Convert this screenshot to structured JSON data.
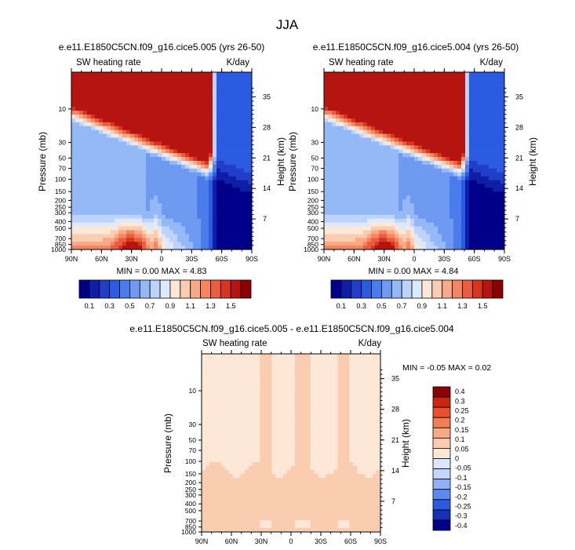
{
  "page_title": "JJA",
  "colors": {
    "diverging": [
      "#00008b",
      "#0d1fa7",
      "#1f3fcb",
      "#2b5be0",
      "#4a7ceb",
      "#6e9af2",
      "#95b8f7",
      "#bcd4fb",
      "#ddeafd",
      "#fde8d8",
      "#fbcdb0",
      "#f8a985",
      "#f48560",
      "#ea5d3e",
      "#d7351f",
      "#b61410",
      "#8b0000"
    ],
    "diff": [
      "#00008b",
      "#1531b7",
      "#2b5be0",
      "#5c8aef",
      "#8fb2f6",
      "#c1d8fb",
      "#dbe8fb",
      "#fde8d8",
      "#fbcdb0",
      "#f8a985",
      "#f47d56",
      "#ea4f2e",
      "#c9250f",
      "#8b0000"
    ]
  },
  "chart_data": [
    {
      "type": "heatmap",
      "title": "e.e11.E1850C5CN.f09_g16.cice5.005 (yrs 26-50)",
      "variable": "SW heating rate",
      "units": "K/day",
      "xlabel": "",
      "ylabel": "Pressure (mb)",
      "ylabel_right": "Height (km)",
      "x_ticks": [
        "90N",
        "60N",
        "30N",
        "0",
        "30S",
        "60S",
        "90S"
      ],
      "x_values": [
        90,
        60,
        30,
        0,
        -30,
        -60,
        -90
      ],
      "y_ticks": [
        "10",
        "30",
        "50",
        "70",
        "100",
        "150",
        "200",
        "250",
        "300",
        "400",
        "500",
        "700",
        "850",
        "1000"
      ],
      "y_values": [
        10,
        30,
        50,
        70,
        100,
        150,
        200,
        250,
        300,
        400,
        500,
        700,
        850,
        1000
      ],
      "y_right_ticks": [
        "35",
        "28",
        "21",
        "14",
        "7"
      ],
      "y_right_values": [
        35,
        28,
        21,
        14,
        7
      ],
      "ylim": [
        1000,
        3
      ],
      "xlim": [
        90,
        -90
      ],
      "stats": "MIN =   0.00  MAX =   4.83",
      "colorbar": {
        "labels": [
          "0.1",
          "0.3",
          "0.5",
          "0.7",
          "0.9",
          "1.1",
          "1.3",
          "1.5"
        ],
        "levels": [
          0.1,
          0.2,
          0.3,
          0.4,
          0.5,
          0.6,
          0.7,
          0.8,
          0.9,
          1.0,
          1.1,
          1.2,
          1.3,
          1.4,
          1.5
        ]
      }
    },
    {
      "type": "heatmap",
      "title": "e.e11.E1850C5CN.f09_g16.cice5.004 (yrs 26-50)",
      "variable": "SW heating rate",
      "units": "K/day",
      "xlabel": "",
      "ylabel": "Pressure (mb)",
      "ylabel_right": "Height (km)",
      "x_ticks": [
        "90N",
        "60N",
        "30N",
        "0",
        "30S",
        "60S",
        "90S"
      ],
      "x_values": [
        90,
        60,
        30,
        0,
        -30,
        -60,
        -90
      ],
      "y_ticks": [
        "10",
        "30",
        "50",
        "70",
        "100",
        "150",
        "200",
        "250",
        "300",
        "400",
        "500",
        "700",
        "850",
        "1000"
      ],
      "y_values": [
        10,
        30,
        50,
        70,
        100,
        150,
        200,
        250,
        300,
        400,
        500,
        700,
        850,
        1000
      ],
      "y_right_ticks": [
        "35",
        "28",
        "21",
        "14",
        "7"
      ],
      "y_right_values": [
        35,
        28,
        21,
        14,
        7
      ],
      "ylim": [
        1000,
        3
      ],
      "xlim": [
        90,
        -90
      ],
      "stats": "MIN =   0.00  MAX =   4.84",
      "colorbar": {
        "labels": [
          "0.1",
          "0.3",
          "0.5",
          "0.7",
          "0.9",
          "1.1",
          "1.3",
          "1.5"
        ],
        "levels": [
          0.1,
          0.2,
          0.3,
          0.4,
          0.5,
          0.6,
          0.7,
          0.8,
          0.9,
          1.0,
          1.1,
          1.2,
          1.3,
          1.4,
          1.5
        ]
      }
    },
    {
      "type": "heatmap",
      "title": "e.e11.E1850C5CN.f09_g16.cice5.005 - e.e11.E1850C5CN.f09_g16.cice5.004",
      "variable": "SW heating rate",
      "units": "K/day",
      "xlabel": "",
      "ylabel": "Pressure (mb)",
      "ylabel_right": "Height (km)",
      "x_ticks": [
        "90N",
        "60N",
        "30N",
        "0",
        "30S",
        "60S",
        "90S"
      ],
      "x_values": [
        90,
        60,
        30,
        0,
        -30,
        -60,
        -90
      ],
      "y_ticks": [
        "10",
        "30",
        "50",
        "70",
        "100",
        "150",
        "200",
        "250",
        "300",
        "400",
        "500",
        "700",
        "850",
        "1000"
      ],
      "y_values": [
        10,
        30,
        50,
        70,
        100,
        150,
        200,
        250,
        300,
        400,
        500,
        700,
        850,
        1000
      ],
      "y_right_ticks": [
        "35",
        "28",
        "21",
        "14",
        "7"
      ],
      "y_right_values": [
        35,
        28,
        21,
        14,
        7
      ],
      "ylim": [
        1000,
        3
      ],
      "xlim": [
        90,
        -90
      ],
      "stats": "MIN =  -0.05  MAX =   0.02",
      "colorbar": {
        "labels": [
          "0.4",
          "0.3",
          "0.25",
          "0.2",
          "0.15",
          "0.1",
          "0.05",
          "0",
          "-0.05",
          "-0.1",
          "-0.15",
          "-0.2",
          "-0.25",
          "-0.3",
          "-0.4"
        ],
        "levels": [
          0.4,
          0.3,
          0.25,
          0.2,
          0.15,
          0.1,
          0.05,
          0,
          -0.05,
          -0.1,
          -0.15,
          -0.2,
          -0.25,
          -0.3,
          -0.4
        ]
      }
    }
  ]
}
